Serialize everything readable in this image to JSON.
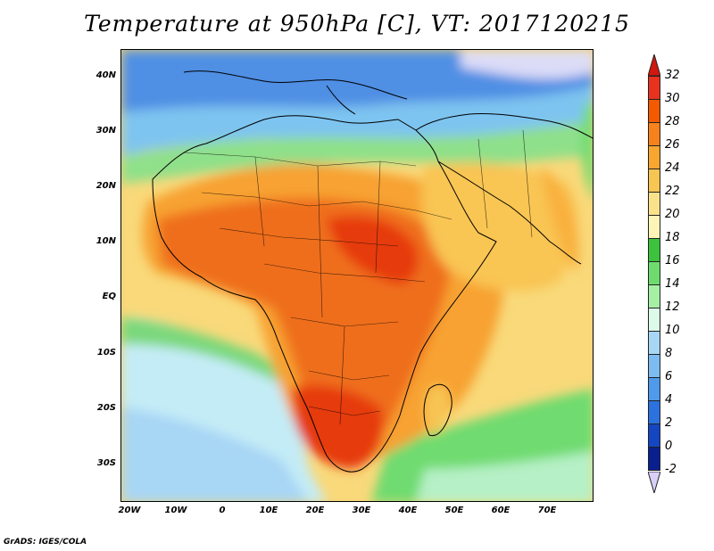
{
  "title": "Temperature at 950hPa [C], VT: 2017120215",
  "footer": "GrADS: IGES/COLA",
  "lat_labels": [
    "40N",
    "30N",
    "20N",
    "10N",
    "EQ",
    "10S",
    "20S",
    "30S"
  ],
  "lon_labels": [
    "20W",
    "10W",
    "0",
    "10E",
    "20E",
    "30E",
    "40E",
    "50E",
    "60E",
    "70E"
  ],
  "colorbar": {
    "labels": [
      "32",
      "30",
      "28",
      "26",
      "24",
      "22",
      "20",
      "18",
      "16",
      "14",
      "12",
      "10",
      "8",
      "6",
      "4",
      "2",
      "0",
      "-2"
    ],
    "colors": [
      "#e8321e",
      "#f35a00",
      "#f7821c",
      "#f9a630",
      "#f7c552",
      "#fae28a",
      "#fdf4b8",
      "#3cc23c",
      "#6fdb6f",
      "#a6f0a6",
      "#dcfaea",
      "#a8d6f5",
      "#7cbcf0",
      "#4f9aea",
      "#2c72de",
      "#1546c2",
      "#0a1f8e"
    ],
    "top_arrow_color": "#d01810",
    "bottom_arrow_color": "#d8d0f8",
    "unit": "C"
  },
  "map": {
    "region": "Africa and surroundings",
    "lon_range": [
      -25,
      80
    ],
    "lat_range": [
      -37,
      45
    ],
    "ocean_background_color": "#f9d97a"
  }
}
